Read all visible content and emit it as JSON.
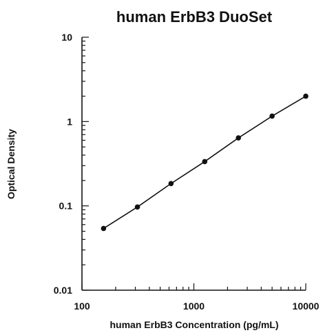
{
  "chart_data": {
    "type": "line",
    "title": "human ErbB3 DuoSet",
    "xlabel": "human ErbB3 Concentration (pg/mL)",
    "ylabel": "Optical Density",
    "xscale": "log",
    "yscale": "log",
    "xlim": [
      100,
      10000
    ],
    "ylim": [
      0.01,
      10
    ],
    "x_ticks": [
      100,
      1000,
      10000
    ],
    "x_tick_labels": [
      "100",
      "1000",
      "10000"
    ],
    "y_ticks": [
      0.01,
      0.1,
      1,
      10
    ],
    "y_tick_labels": [
      "0.01",
      "0.1",
      "1",
      "10"
    ],
    "grid": false,
    "legend": "none",
    "series": [
      {
        "x": [
          156,
          313,
          625,
          1250,
          2500,
          5000,
          10000
        ],
        "y": [
          0.054,
          0.097,
          0.184,
          0.335,
          0.64,
          1.16,
          2.0
        ]
      }
    ],
    "colors": {
      "line": "#111111",
      "marker": "#111111"
    }
  }
}
